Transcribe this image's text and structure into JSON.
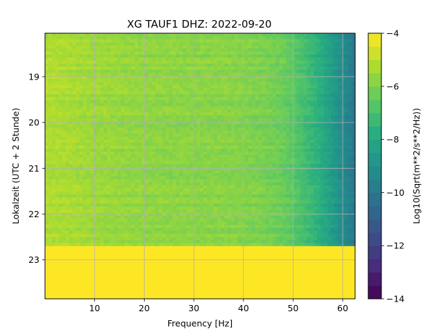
{
  "chart_data": {
    "type": "heatmap",
    "title": "XG TAUF1  DHZ: 2022-09-20",
    "xlabel": "Frequency [Hz]",
    "ylabel": "Lokalzeit (UTC + 2 Stunde)",
    "colorbar_label": "Log10(Sqrt(m**2/s**2/Hz))",
    "colormap": "viridis",
    "x_range": [
      0,
      62.5
    ],
    "y_range": [
      18.05,
      23.85
    ],
    "y_inverted": true,
    "x_ticks": [
      10,
      20,
      30,
      40,
      50,
      60
    ],
    "x_tick_labels": [
      "10",
      "20",
      "30",
      "40",
      "50",
      "60"
    ],
    "y_ticks": [
      19,
      20,
      21,
      22,
      23
    ],
    "y_tick_labels": [
      "19",
      "20",
      "21",
      "22",
      "23"
    ],
    "colorbar_range": [
      -14,
      -4
    ],
    "colorbar_ticks": [
      -14,
      -12,
      -10,
      -8,
      -6,
      -4
    ],
    "colorbar_tick_labels": [
      "−14",
      "−12",
      "−10",
      "−8",
      "−6",
      "−4"
    ],
    "grid": true,
    "data_end_hour": 22.7,
    "fill_value_after_end": -4,
    "frequency_profile": {
      "frequency_hz": [
        0,
        5,
        10,
        15,
        20,
        25,
        30,
        35,
        40,
        45,
        48,
        50,
        52,
        55,
        57,
        60,
        62.5
      ],
      "log10_amplitude": [
        -5.2,
        -5.3,
        -5.5,
        -5.6,
        -5.7,
        -5.75,
        -5.8,
        -5.8,
        -5.9,
        -6.1,
        -6.3,
        -6.6,
        -7.0,
        -7.6,
        -8.2,
        -9.2,
        -10.0
      ]
    },
    "colors": {
      "grid": "#b0b0b0",
      "fill_after_end": "#fde725"
    }
  }
}
